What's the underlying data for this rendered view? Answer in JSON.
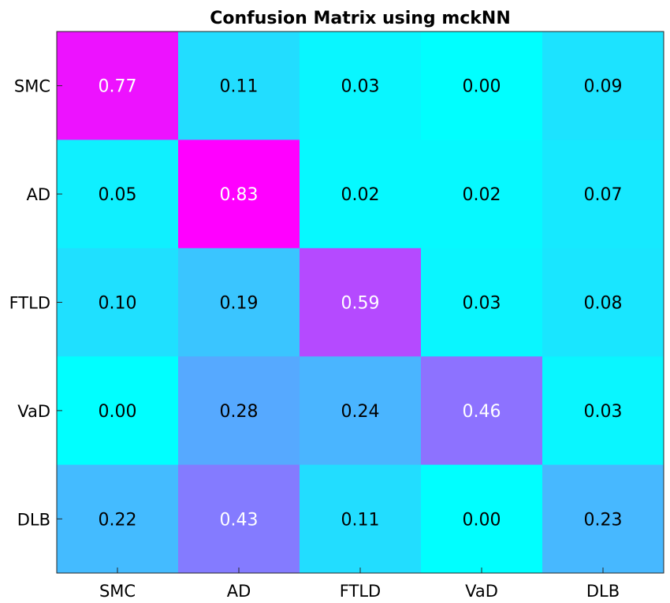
{
  "chart_data": {
    "type": "heatmap",
    "title": "Confusion Matrix using mckNN",
    "xlabel": "",
    "ylabel": "",
    "x_categories": [
      "SMC",
      "AD",
      "FTLD",
      "VaD",
      "DLB"
    ],
    "y_categories": [
      "SMC",
      "AD",
      "FTLD",
      "VaD",
      "DLB"
    ],
    "values": [
      [
        "0.77",
        "0.11",
        "0.03",
        "0.00",
        "0.09"
      ],
      [
        "0.05",
        "0.83",
        "0.02",
        "0.02",
        "0.07"
      ],
      [
        "0.10",
        "0.19",
        "0.59",
        "0.03",
        "0.08"
      ],
      [
        "0.00",
        "0.28",
        "0.24",
        "0.46",
        "0.03"
      ],
      [
        "0.22",
        "0.43",
        "0.11",
        "0.00",
        "0.23"
      ]
    ],
    "color_scale": {
      "min": 0,
      "max": 0.83,
      "low_color": "#00ffff",
      "high_color": "#ff00ff"
    },
    "text_colors": {
      "dark": "#000000",
      "light": "#ffffff"
    },
    "grid": false,
    "legend": "none"
  }
}
